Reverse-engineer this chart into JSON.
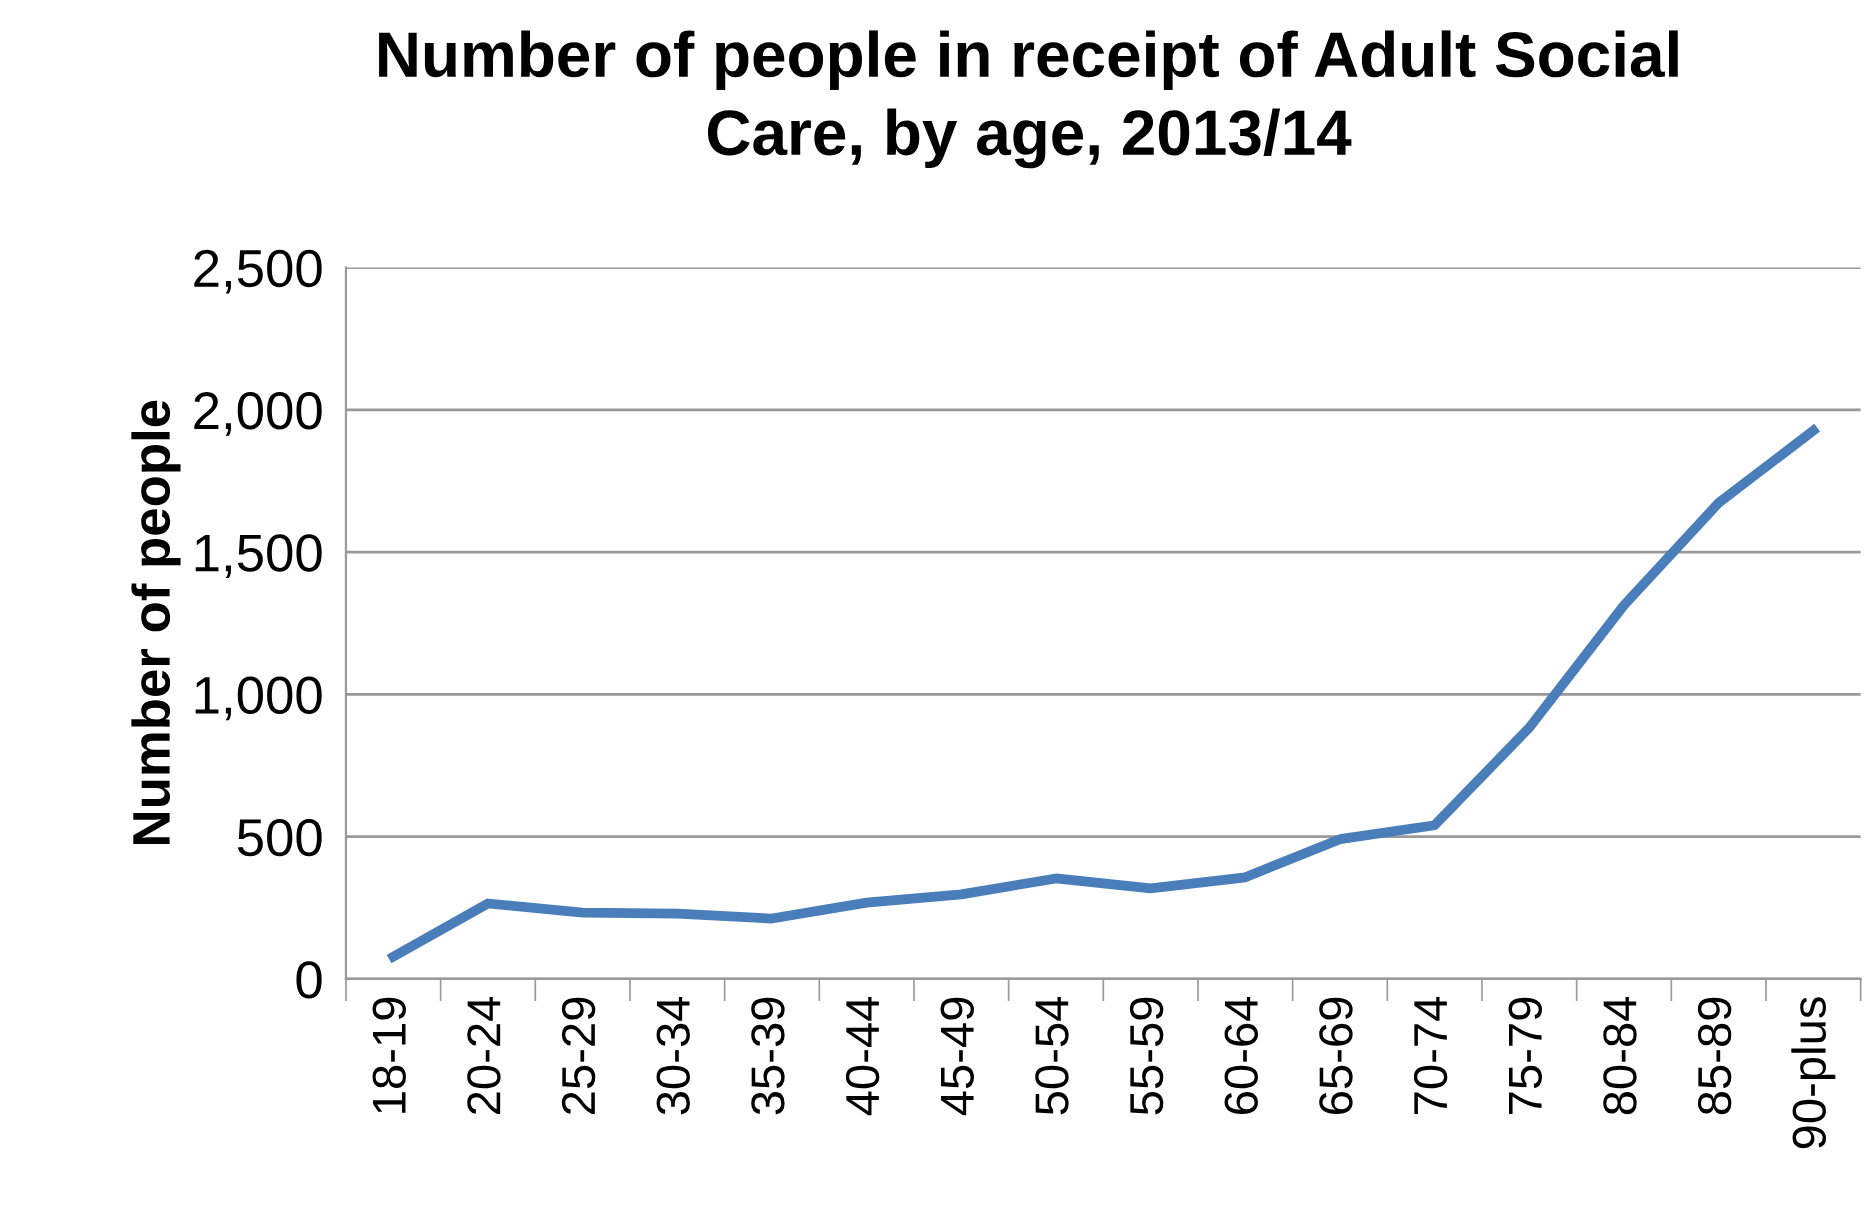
{
  "chart_data": {
    "type": "line",
    "title": "Number of people in receipt of Adult Social\nCare, by age, 2013/14",
    "ylabel": "Number of people",
    "categories": [
      "18-19",
      "20-24",
      "25-29",
      "30-34",
      "35-39",
      "40-44",
      "45-49",
      "50-54",
      "55-59",
      "60-64",
      "65-69",
      "70-74",
      "75-79",
      "80-84",
      "85-89",
      "90-plus"
    ],
    "series": [
      {
        "color": "#4a7ebb",
        "values": [
          78,
          265,
          233,
          229,
          212,
          268,
          297,
          353,
          318,
          357,
          491,
          540,
          883,
          1313,
          1673,
          1927
        ]
      }
    ],
    "ylim": [
      0,
      2500
    ],
    "yticks": [
      {
        "value": 0,
        "label": "0"
      },
      {
        "value": 500,
        "label": "500"
      },
      {
        "value": 1000,
        "label": "1,000"
      },
      {
        "value": 1500,
        "label": "1,500"
      },
      {
        "value": 2000,
        "label": "2,000"
      },
      {
        "value": 2500,
        "label": "2,500"
      }
    ],
    "grid": "y",
    "legend": false,
    "marker": "none",
    "line_style": "solid"
  }
}
